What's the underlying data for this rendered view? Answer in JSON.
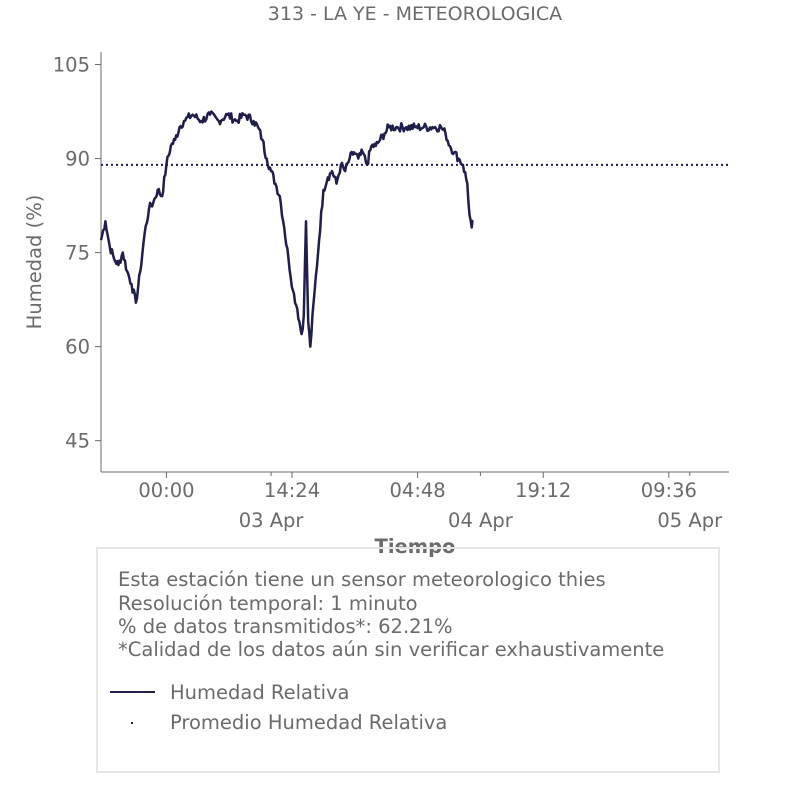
{
  "chart_data": {
    "type": "line",
    "title": "313 - LA YE - METEOROLOGICA",
    "xlabel": "Tiempo",
    "ylabel": "Humedad (%)",
    "ylim": [
      40,
      107
    ],
    "yticks": [
      45,
      60,
      75,
      90,
      105
    ],
    "xlim": [
      "2025-04-02 16:30",
      "2025-04-05 16:30"
    ],
    "x_major_ticks": [
      {
        "t": "2025-04-03 00:00",
        "label": "00:00"
      },
      {
        "t": "2025-04-03 14:24",
        "label": "14:24"
      },
      {
        "t": "2025-04-04 04:48",
        "label": "04:48"
      },
      {
        "t": "2025-04-04 19:12",
        "label": "19:12"
      },
      {
        "t": "2025-04-05 09:36",
        "label": "09:36"
      }
    ],
    "x_minor_ticks": [
      {
        "t": "2025-04-03 12:00",
        "label": "03 Apr"
      },
      {
        "t": "2025-04-04 12:00",
        "label": "04 Apr"
      },
      {
        "t": "2025-04-05 12:00",
        "label": "05 Apr"
      }
    ],
    "grid": false,
    "series": [
      {
        "name": "Humedad Relativa",
        "color": "#1f1f4a",
        "points": [
          [
            "2025-04-02 16:30",
            77
          ],
          [
            "2025-04-02 17:00",
            80
          ],
          [
            "2025-04-02 17:30",
            76
          ],
          [
            "2025-04-02 18:00",
            74
          ],
          [
            "2025-04-02 18:30",
            73
          ],
          [
            "2025-04-02 19:00",
            75
          ],
          [
            "2025-04-02 19:30",
            72
          ],
          [
            "2025-04-02 20:00",
            70
          ],
          [
            "2025-04-02 20:30",
            67
          ],
          [
            "2025-04-02 21:00",
            72
          ],
          [
            "2025-04-02 21:30",
            78
          ],
          [
            "2025-04-02 22:00",
            82
          ],
          [
            "2025-04-02 22:30",
            83
          ],
          [
            "2025-04-02 23:00",
            85
          ],
          [
            "2025-04-02 23:30",
            84
          ],
          [
            "2025-04-03 00:00",
            89
          ],
          [
            "2025-04-03 00:30",
            92
          ],
          [
            "2025-04-03 01:00",
            93
          ],
          [
            "2025-04-03 01:30",
            95
          ],
          [
            "2025-04-03 02:00",
            96
          ],
          [
            "2025-04-03 03:00",
            97
          ],
          [
            "2025-04-03 04:00",
            96
          ],
          [
            "2025-04-03 05:00",
            97
          ],
          [
            "2025-04-03 06:00",
            96
          ],
          [
            "2025-04-03 07:00",
            97
          ],
          [
            "2025-04-03 08:00",
            96
          ],
          [
            "2025-04-03 09:00",
            97
          ],
          [
            "2025-04-03 10:00",
            96
          ],
          [
            "2025-04-03 10:30",
            95
          ],
          [
            "2025-04-03 11:00",
            93
          ],
          [
            "2025-04-03 11:30",
            90
          ],
          [
            "2025-04-03 12:00",
            88
          ],
          [
            "2025-04-03 12:30",
            86
          ],
          [
            "2025-04-03 13:00",
            84
          ],
          [
            "2025-04-03 13:30",
            79
          ],
          [
            "2025-04-03 14:00",
            74
          ],
          [
            "2025-04-03 14:30",
            69
          ],
          [
            "2025-04-03 15:00",
            66
          ],
          [
            "2025-04-03 15:30",
            62
          ],
          [
            "2025-04-03 15:45",
            65
          ],
          [
            "2025-04-03 16:00",
            80
          ],
          [
            "2025-04-03 16:15",
            64
          ],
          [
            "2025-04-03 16:30",
            60
          ],
          [
            "2025-04-03 17:00",
            69
          ],
          [
            "2025-04-03 17:30",
            77
          ],
          [
            "2025-04-03 18:00",
            85
          ],
          [
            "2025-04-03 18:30",
            87
          ],
          [
            "2025-04-03 19:00",
            88
          ],
          [
            "2025-04-03 19:30",
            86
          ],
          [
            "2025-04-03 20:00",
            89
          ],
          [
            "2025-04-03 20:30",
            88
          ],
          [
            "2025-04-03 21:00",
            90
          ],
          [
            "2025-04-03 21:30",
            91
          ],
          [
            "2025-04-03 22:00",
            90
          ],
          [
            "2025-04-03 22:30",
            91
          ],
          [
            "2025-04-03 23:00",
            89
          ],
          [
            "2025-04-03 23:30",
            92
          ],
          [
            "2025-04-04 00:00",
            92
          ],
          [
            "2025-04-04 00:30",
            93
          ],
          [
            "2025-04-04 01:00",
            94
          ],
          [
            "2025-04-04 01:30",
            95
          ],
          [
            "2025-04-04 02:30",
            95
          ],
          [
            "2025-04-04 03:30",
            95
          ],
          [
            "2025-04-04 04:30",
            95
          ],
          [
            "2025-04-04 05:30",
            95
          ],
          [
            "2025-04-04 06:30",
            95
          ],
          [
            "2025-04-04 07:30",
            95
          ],
          [
            "2025-04-04 08:00",
            94
          ],
          [
            "2025-04-04 08:30",
            92
          ],
          [
            "2025-04-04 09:00",
            91
          ],
          [
            "2025-04-04 09:30",
            90
          ],
          [
            "2025-04-04 10:00",
            89
          ],
          [
            "2025-04-04 10:30",
            86
          ],
          [
            "2025-04-04 10:45",
            81
          ],
          [
            "2025-04-04 11:00",
            79
          ],
          [
            "2025-04-04 11:10",
            80
          ]
        ]
      },
      {
        "name": "Promedio Humedad Relativa",
        "color": "#1f1f4a",
        "style": "dotted",
        "value": 89.0
      }
    ]
  },
  "info": {
    "lines": [
      "Esta estación tiene un sensor meteorologico thies",
      "Resolución temporal: 1 minuto",
      "% de datos transmitidos*: 62.21%",
      "*Calidad de los datos aún sin verificar exhaustivamente"
    ],
    "legend": [
      {
        "label": "Humedad Relativa"
      },
      {
        "label": "Promedio Humedad Relativa"
      }
    ]
  }
}
